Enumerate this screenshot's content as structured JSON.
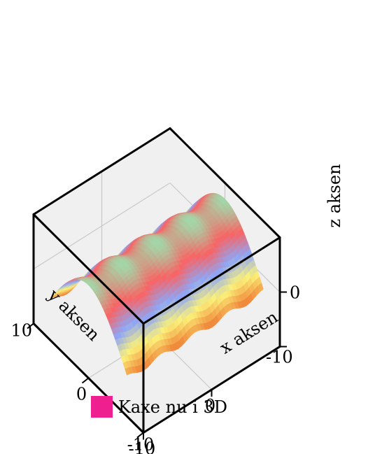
{
  "chart_data": {
    "type": "surface-3d",
    "surface": "z = 10*sin(pi*(y+10)/20) + 0.5*cos(2*pi*(x+10)/5), rendered as a ridge running along x",
    "x_range": [
      -10,
      10
    ],
    "y_range": [
      -10,
      10
    ],
    "z_range": [
      -10,
      10
    ],
    "xlabel": "x aksen",
    "ylabel": "y aksen",
    "zlabel": "z aksen",
    "x_ticks": [
      "-10",
      "0"
    ],
    "y_ticks": [
      "10",
      "0",
      "-10"
    ],
    "z_ticks": [
      "-10",
      "0"
    ],
    "colormap": [
      "#f08a3c",
      "#fbf27a",
      "#8ea6f7",
      "#f96464",
      "#a3d6a8"
    ],
    "legend": {
      "label": "Kaxe nu i 3D",
      "color": "#ee2090",
      "placement": "bottom"
    }
  }
}
